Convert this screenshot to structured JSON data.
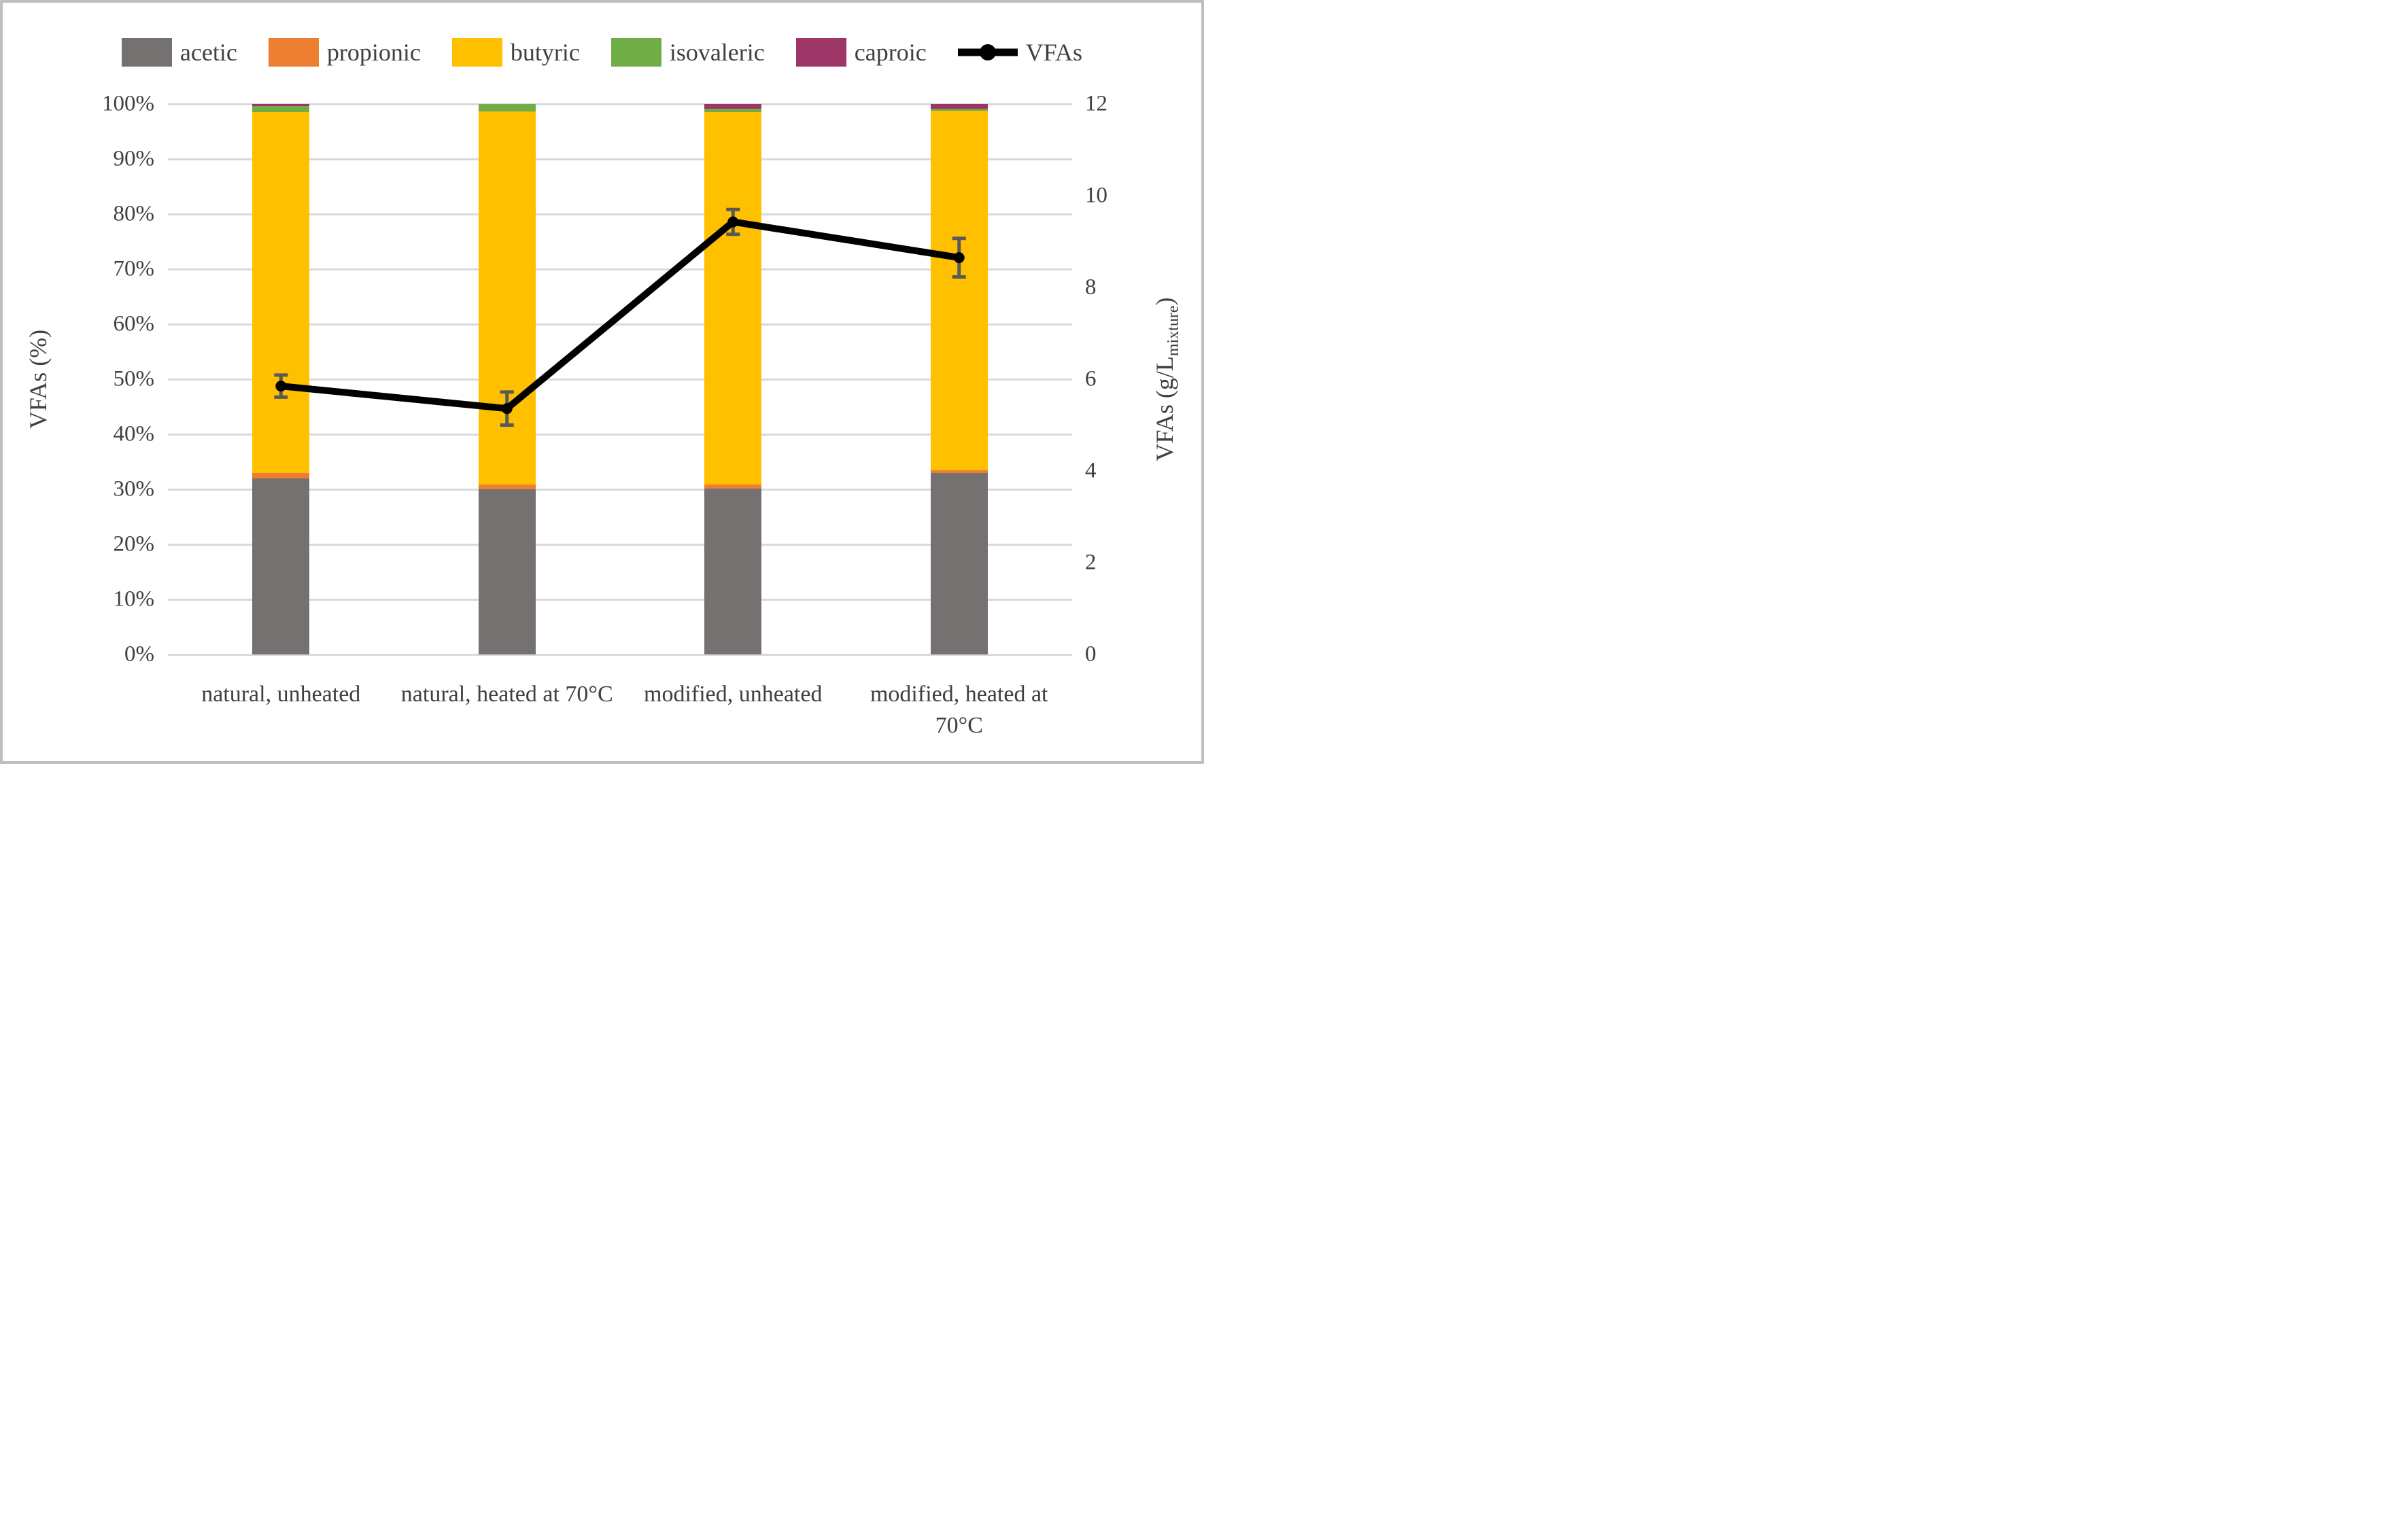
{
  "legend": {
    "items": [
      {
        "label": "acetic",
        "color": "#767171",
        "marker": "box"
      },
      {
        "label": "propionic",
        "color": "#ED7D31",
        "marker": "box"
      },
      {
        "label": "butyric",
        "color": "#FFC000",
        "marker": "box"
      },
      {
        "label": "isovaleric",
        "color": "#70AD47",
        "marker": "box"
      },
      {
        "label": "caproic",
        "color": "#9E3567",
        "marker": "box"
      },
      {
        "label": "VFAs",
        "color": "#000000",
        "marker": "line"
      }
    ]
  },
  "left_axis": {
    "title": "VFAs (%)",
    "ticks": [
      "0%",
      "10%",
      "20%",
      "30%",
      "40%",
      "50%",
      "60%",
      "70%",
      "80%",
      "90%",
      "100%"
    ],
    "min": 0,
    "max": 100
  },
  "right_axis": {
    "title_main": "VFAs (g/L",
    "title_sub": "mixture",
    "title_end": ")",
    "ticks": [
      0,
      2,
      4,
      6,
      8,
      10,
      12
    ],
    "min": 0,
    "max": 12
  },
  "chart_data": {
    "type": "bar",
    "subtype": "100%-stacked-bars-with-line-overlay",
    "title": "",
    "categories": [
      "natural, unheated",
      "natural, heated at 70°C",
      "modified, unheated",
      "modified, heated at 70°C"
    ],
    "series": [
      {
        "name": "acetic",
        "color": "#767171",
        "values": [
          32.0,
          30.0,
          30.1,
          33.0
        ]
      },
      {
        "name": "propionic",
        "color": "#ED7D31",
        "values": [
          1.0,
          0.9,
          0.8,
          0.5
        ]
      },
      {
        "name": "butyric",
        "color": "#FFC000",
        "values": [
          65.5,
          67.7,
          67.6,
          65.3
        ]
      },
      {
        "name": "isovaleric",
        "color": "#70AD47",
        "values": [
          1.1,
          1.4,
          0.6,
          0.3
        ]
      },
      {
        "name": "caproic",
        "color": "#9E3567",
        "values": [
          0.4,
          0.0,
          0.9,
          0.9
        ]
      }
    ],
    "line_series": {
      "name": "VFAs",
      "axis": "right",
      "color": "#000000",
      "values": [
        5.85,
        5.36,
        9.43,
        8.65
      ],
      "errors": [
        0.24,
        0.36,
        0.27,
        0.42
      ],
      "error_bar_color": "#595959"
    },
    "xlabel": "",
    "ylabel_left": "VFAs (%)",
    "ylabel_right": "VFAs (g/L_mixture)",
    "ylim_left": [
      0,
      100
    ],
    "ylim_right": [
      0,
      12
    ],
    "grid": true,
    "gridline_color": "#D9D9D9",
    "legend_position": "top"
  }
}
